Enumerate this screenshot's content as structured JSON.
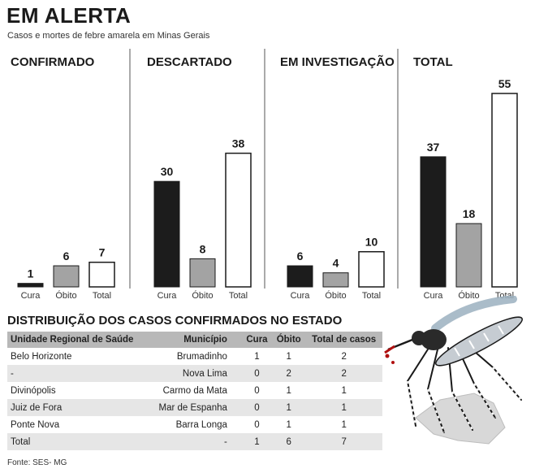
{
  "header": {
    "title": "EM ALERTA",
    "subtitle": "Casos e mortes de febre amarela em Minas Gerais"
  },
  "colors": {
    "cura": "#1c1c1c",
    "obito": "#a3a3a3",
    "total": "#ffffff",
    "outline": "#1a1a1a",
    "divider": "#555555"
  },
  "chart_data": {
    "type": "bar",
    "panels": [
      {
        "title": "CONFIRMADO",
        "categories": [
          "Cura",
          "Óbito",
          "Total"
        ],
        "values": [
          1,
          6,
          7
        ]
      },
      {
        "title": "DESCARTADO",
        "categories": [
          "Cura",
          "Óbito",
          "Total"
        ],
        "values": [
          30,
          8,
          38
        ]
      },
      {
        "title": "EM INVESTIGAÇÃO",
        "categories": [
          "Cura",
          "Óbito",
          "Total"
        ],
        "values": [
          6,
          4,
          10
        ]
      },
      {
        "title": "TOTAL",
        "categories": [
          "Cura",
          "Óbito",
          "Total"
        ],
        "values": [
          37,
          18,
          55
        ]
      }
    ],
    "ylim": [
      0,
      55
    ]
  },
  "table": {
    "title": "DISTRIBUIÇÃO DOS CASOS CONFIRMADOS NO ESTADO",
    "headers": [
      "Unidade Regional de Saúde",
      "Município",
      "Cura",
      "Óbito",
      "Total de casos"
    ],
    "rows": [
      [
        "Belo Horizonte",
        "Brumadinho",
        "1",
        "1",
        "2"
      ],
      [
        "-",
        "Nova Lima",
        "0",
        "2",
        "2"
      ],
      [
        "Divinópolis",
        "Carmo da Mata",
        "0",
        "1",
        "1"
      ],
      [
        "Juiz de Fora",
        "Mar de Espanha",
        "0",
        "1",
        "1"
      ],
      [
        "Ponte Nova",
        "Barra Longa",
        "0",
        "1",
        "1"
      ],
      [
        "Total",
        "-",
        "1",
        "6",
        "7"
      ]
    ]
  },
  "source": "Fonte: SES- MG",
  "illustration": {
    "icon": "mosquito-icon"
  }
}
